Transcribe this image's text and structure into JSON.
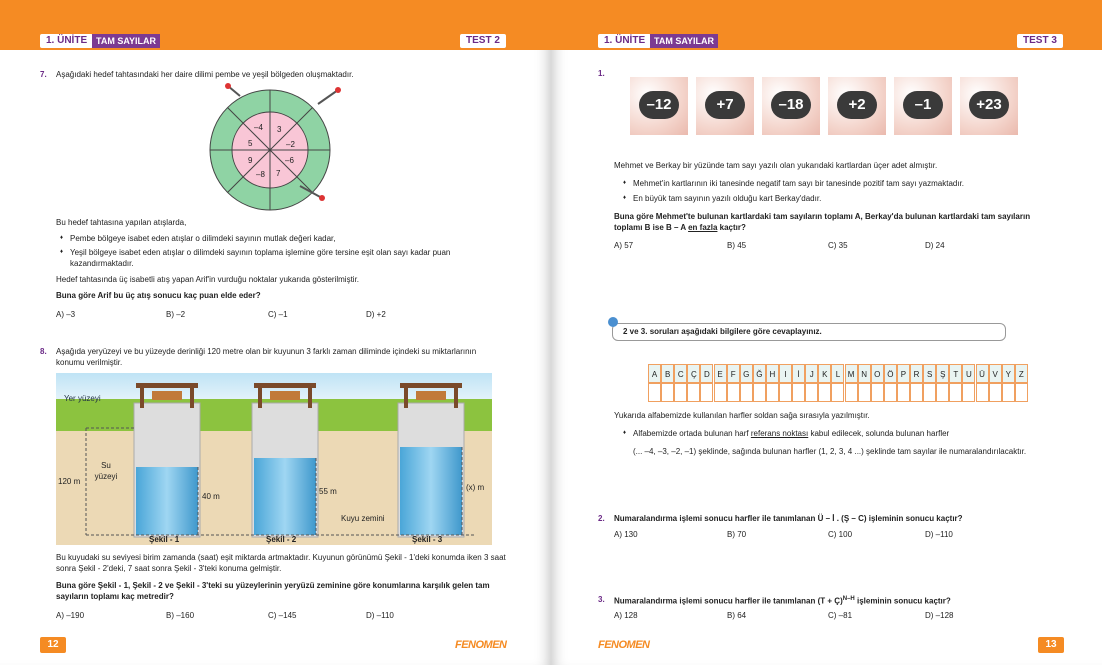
{
  "left": {
    "header": {
      "unit": "1. ÜNİTE",
      "topic": "TAM SAYILAR",
      "test": "TEST 2"
    },
    "q7": {
      "number": "7.",
      "intro": "Aşağıdaki hedef tahtasındaki her daire dilimi pembe ve yeşil bölgeden oluşmaktadır.",
      "board": [
        "–4",
        "3",
        "5",
        "–2",
        "9",
        "–6",
        "–8",
        "7"
      ],
      "text": "Bu hedef tahtasına yapılan atışlarda,",
      "bullets": [
        "Pembe bölgeye isabet eden atışlar o dilimdeki sayının mutlak değeri kadar,",
        "Yeşil bölgeye isabet eden atışlar o dilimdeki sayının toplama işlemine göre tersine eşit olan sayı kadar puan kazandırmaktadır."
      ],
      "note": "Hedef tahtasında üç isabetli atış yapan Arif'in vurduğu noktalar yukarıda gösterilmiştir.",
      "question": "Buna göre Arif bu üç atış sonucu kaç puan elde eder?",
      "options": [
        "A) –3",
        "B) –2",
        "C) –1",
        "D) +2"
      ]
    },
    "q8": {
      "number": "8.",
      "intro": "Aşağıda yeryüzeyi ve bu yüzeyde derinliği 120 metre olan bir kuyunun 3 farklı zaman diliminde içindeki su miktarlarının konumu verilmiştir.",
      "figure": {
        "ground": "Yer yüzeyi",
        "water": "Su yüzeyi",
        "depth": "120 m",
        "levels": [
          "40 m",
          "55 m",
          "(x) m"
        ],
        "floor": "Kuyu zemini",
        "captions": [
          "Şekil - 1",
          "Şekil - 2",
          "Şekil - 3"
        ]
      },
      "text": "Bu kuyudaki su seviyesi birim zamanda (saat) eşit miktarda artmaktadır. Kuyunun görünümü Şekil - 1'deki konumda iken 3 saat sonra Şekil - 2'deki, 7 saat sonra Şekil - 3'teki konuma gelmiştir.",
      "question": "Buna göre Şekil - 1, Şekil - 2 ve Şekil - 3'teki su yüzeylerinin yeryüzü zeminine göre konumlarına karşılık gelen tam sayıların toplamı kaç metredir?",
      "options": [
        "A) –190",
        "B) –160",
        "C) –145",
        "D) –110"
      ]
    },
    "footer": {
      "page": "12",
      "brand": "FENOMEN"
    }
  },
  "right": {
    "header": {
      "unit": "1. ÜNİTE",
      "topic": "TAM SAYILAR",
      "test": "TEST 3"
    },
    "q1": {
      "number": "1.",
      "cards": [
        "–12",
        "+7",
        "–18",
        "+2",
        "–1",
        "+23"
      ],
      "text": "Mehmet ve Berkay bir yüzünde tam sayı yazılı olan yukarıdaki kartlardan üçer adet almıştır.",
      "bullets": [
        "Mehmet'in kartlarının iki tanesinde negatif tam sayı bir tanesinde pozitif tam sayı yazmaktadır.",
        "En büyük tam sayının yazılı olduğu kart Berkay'dadır."
      ],
      "question": [
        "Buna göre Mehmet'te bulunan kartlardaki tam sayıların toplamı A, Berkay'da bulunan kartlardaki tam sayıların toplamı B ise B – A ",
        "en fazla",
        " kaçtır?"
      ],
      "options": [
        "A) 57",
        "B) 45",
        "C) 35",
        "D) 24"
      ]
    },
    "info": "2 ve 3. soruları aşağıdaki bilgilere göre cevaplayınız.",
    "alphabet": [
      "A",
      "B",
      "C",
      "Ç",
      "D",
      "E",
      "F",
      "G",
      "Ğ",
      "H",
      "I",
      "İ",
      "J",
      "K",
      "L",
      "M",
      "N",
      "O",
      "Ö",
      "P",
      "R",
      "S",
      "Ş",
      "T",
      "U",
      "Ü",
      "V",
      "Y",
      "Z"
    ],
    "alphabet_text": "Yukarıda alfabemizde kullanılan harfler soldan sağa sırasıyla yazılmıştır.",
    "rule": [
      "Alfabemizde ortada bulunan harf ",
      "referans noktası",
      " kabul edilecek, solunda bulunan harfler"
    ],
    "rule_cont": "(... –4, –3, –2, –1) şeklinde, sağında bulunan harfler (1, 2, 3, 4 ...) şeklinde tam sayılar ile numaralandırılacaktır.",
    "q2": {
      "number": "2.",
      "question": "Numaralandırma işlemi sonucu harfler ile tanımlanan Ü – İ . (Ş – C) işleminin sonucu kaçtır?",
      "options": [
        "A) 130",
        "B) 70",
        "C) 100",
        "D) –110"
      ]
    },
    "q3": {
      "number": "3.",
      "question": [
        "Numaralandırma işlemi sonucu harfler ile tanımlanan (T + Ç)",
        "N–H",
        " işleminin sonucu kaçtır?"
      ],
      "options": [
        "A) 128",
        "B) 64",
        "C) –81",
        "D) –128"
      ]
    },
    "footer": {
      "page": "13",
      "brand": "FENOMEN"
    }
  }
}
